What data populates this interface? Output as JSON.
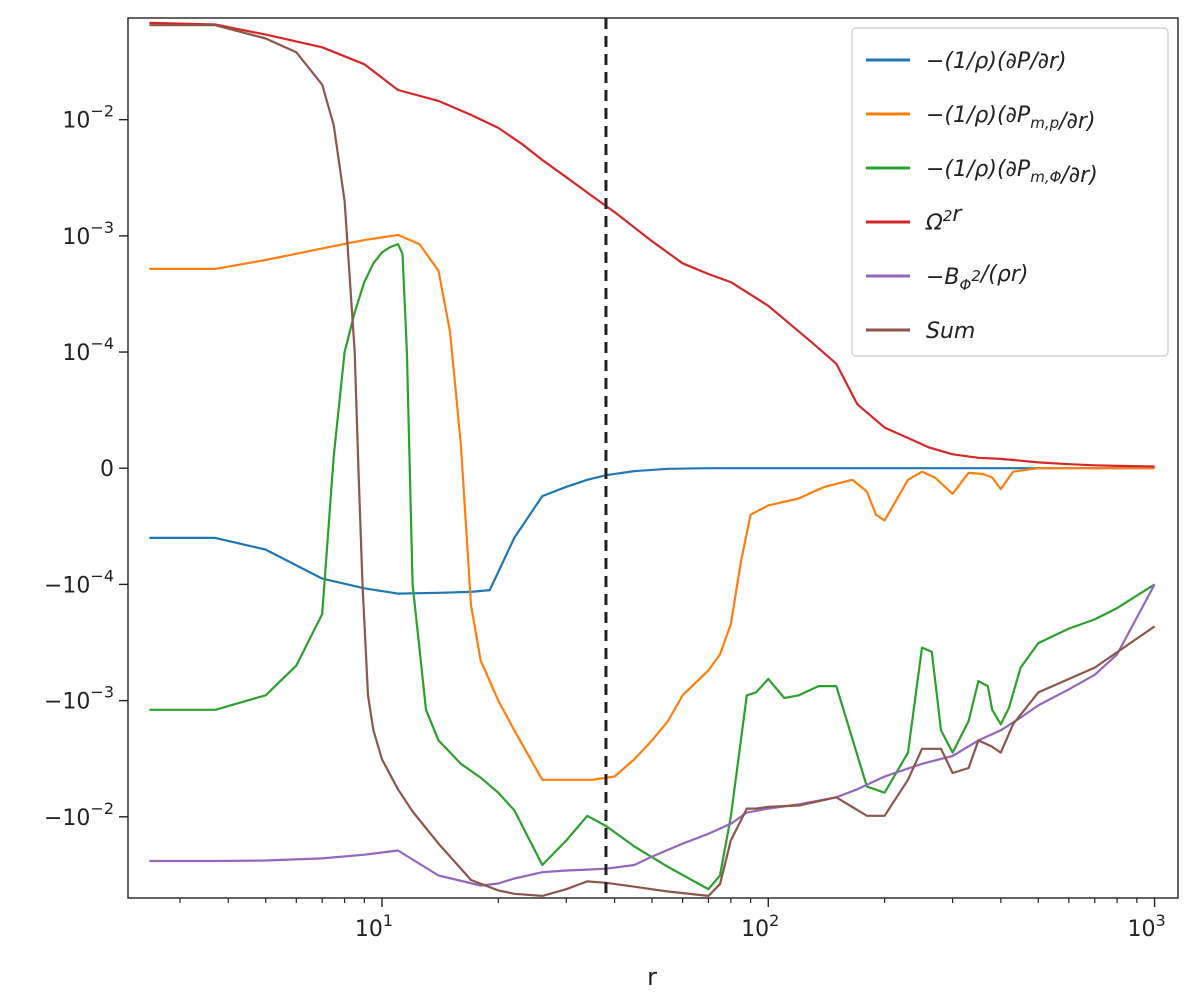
{
  "chart_data": {
    "type": "line",
    "xlabel": "r",
    "ylabel": "",
    "title": "",
    "x_scale": "log",
    "y_scale": "symlog",
    "symlog_linthresh": 0.0001,
    "xlim": [
      2.2,
      1150
    ],
    "ylim": [
      -0.05,
      0.075
    ],
    "grid": false,
    "legend_placement": "top-right",
    "x_major_ticks": [
      {
        "value": 10,
        "base": "10",
        "exp": "1"
      },
      {
        "value": 100,
        "base": "10",
        "exp": "2"
      },
      {
        "value": 1000,
        "base": "10",
        "exp": "3"
      }
    ],
    "y_ticks": [
      {
        "value": 0.01,
        "label": "10",
        "exp": "−2"
      },
      {
        "value": 0.001,
        "label": "10",
        "exp": "−3"
      },
      {
        "value": 0.0001,
        "label": "10",
        "exp": "−4"
      },
      {
        "value": 0,
        "label": "0",
        "exp": ""
      },
      {
        "value": -0.0001,
        "label": "−10",
        "exp": "−4"
      },
      {
        "value": -0.001,
        "label": "−10",
        "exp": "−3"
      },
      {
        "value": -0.01,
        "label": "−10",
        "exp": "−2"
      }
    ],
    "vline": {
      "x": 38,
      "style": "dashed",
      "color": "#222222"
    },
    "series": [
      {
        "name": "−(1/ρ)(∂P/∂r)",
        "color": "#1f77b4",
        "x": [
          2.5,
          3.7,
          5,
          7,
          9,
          11,
          14,
          17,
          19,
          22,
          26,
          30,
          34,
          38,
          45,
          55,
          70,
          100,
          200,
          500,
          1000
        ],
        "y": [
          -6e-05,
          -6e-05,
          -7e-05,
          -9.5e-05,
          -0.000108,
          -0.00012,
          -0.000118,
          -0.000116,
          -0.000112,
          -6e-05,
          -2.4e-05,
          -1.6e-05,
          -1e-05,
          -6e-06,
          -2.5e-06,
          -5e-07,
          0,
          0,
          0,
          0,
          0
        ]
      },
      {
        "name": "−(1/ρ)(∂P_{m,p}/∂r)",
        "color": "#ff7f0e",
        "x": [
          2.5,
          3.7,
          5,
          7,
          9,
          11,
          12.5,
          14,
          15,
          16,
          17,
          18,
          20,
          22,
          26,
          30,
          35,
          40,
          45,
          50,
          55,
          60,
          70,
          75,
          80,
          85,
          90,
          100,
          120,
          140,
          165,
          180,
          190,
          200,
          230,
          250,
          270,
          300,
          330,
          360,
          380,
          400,
          430,
          500,
          700,
          1000
        ],
        "y": [
          0.00052,
          0.00052,
          0.00062,
          0.00078,
          0.00092,
          0.00102,
          0.00085,
          0.0005,
          0.00015,
          2e-05,
          -0.00015,
          -0.00045,
          -0.001,
          -0.0018,
          -0.0048,
          -0.0048,
          -0.0048,
          -0.0045,
          -0.0032,
          -0.0022,
          -0.0015,
          -0.0009,
          -0.00055,
          -0.0004,
          -0.00022,
          -8e-05,
          -4e-05,
          -3.2e-05,
          -2.6e-05,
          -1.6e-05,
          -1e-05,
          -2e-05,
          -4e-05,
          -4.5e-05,
          -1e-05,
          -3e-06,
          -8e-06,
          -2.2e-05,
          -4e-06,
          -5e-06,
          -8e-06,
          -1.8e-05,
          -3e-06,
          0,
          0,
          0
        ]
      },
      {
        "name": "−(1/ρ)(∂P_{m,Φ}/∂r)",
        "color": "#2ca02c",
        "x": [
          2.5,
          3.7,
          5,
          6,
          7,
          7.5,
          8,
          8.5,
          9,
          9.5,
          10,
          10.5,
          11,
          11.3,
          11.6,
          12,
          13,
          14,
          16,
          18,
          20,
          22,
          26,
          30,
          34,
          38,
          45,
          55,
          70,
          75,
          80,
          88,
          93,
          100,
          110,
          120,
          135,
          150,
          180,
          200,
          230,
          250,
          265,
          280,
          300,
          330,
          350,
          370,
          380,
          400,
          420,
          450,
          500,
          600,
          700,
          800,
          1000
        ],
        "y": [
          -0.0012,
          -0.0012,
          -0.0009,
          -0.0005,
          -0.00018,
          1e-05,
          0.0001,
          0.00022,
          0.0004,
          0.00058,
          0.00072,
          0.0008,
          0.00085,
          0.0007,
          0.0001,
          -0.0001,
          -0.0012,
          -0.0022,
          -0.0035,
          -0.0046,
          -0.0062,
          -0.0088,
          -0.026,
          -0.016,
          -0.0098,
          -0.012,
          -0.018,
          -0.027,
          -0.042,
          -0.032,
          -0.01,
          -0.0009,
          -0.00085,
          -0.00065,
          -0.00095,
          -0.0009,
          -0.00075,
          -0.00075,
          -0.0055,
          -0.0062,
          -0.0028,
          -0.00035,
          -0.00038,
          -0.0018,
          -0.0028,
          -0.0015,
          -0.00068,
          -0.00075,
          -0.0012,
          -0.0016,
          -0.00115,
          -0.00052,
          -0.00032,
          -0.00024,
          -0.0002,
          -0.00016,
          -0.0001
        ]
      },
      {
        "name": "Ω²r",
        "color": "#d62728",
        "x": [
          2.5,
          3.7,
          5,
          7,
          9,
          11,
          14,
          17,
          20,
          23,
          26,
          30,
          35,
          40,
          50,
          60,
          70,
          80,
          100,
          130,
          150,
          170,
          200,
          230,
          260,
          300,
          350,
          400,
          450,
          500,
          600,
          700,
          800,
          1000
        ],
        "y": [
          0.068,
          0.066,
          0.054,
          0.042,
          0.03,
          0.018,
          0.0145,
          0.011,
          0.0085,
          0.0062,
          0.0045,
          0.0032,
          0.0022,
          0.0016,
          0.0009,
          0.00058,
          0.00047,
          0.0004,
          0.00025,
          0.00012,
          9e-05,
          5.5e-05,
          3.5e-05,
          2.6e-05,
          1.8e-05,
          1.2e-05,
          9e-06,
          8e-06,
          6.5e-06,
          5e-06,
          3.5e-06,
          2.5e-06,
          2e-06,
          1.5e-06
        ]
      },
      {
        "name": "−B_Φ²/(ρr)",
        "color": "#9467bd",
        "x": [
          2.5,
          3.7,
          5,
          7,
          9,
          11,
          14,
          18,
          20,
          22,
          26,
          30,
          34,
          38,
          45,
          50,
          60,
          70,
          80,
          88,
          100,
          120,
          150,
          170,
          200,
          250,
          300,
          350,
          400,
          450,
          500,
          600,
          700,
          800,
          1000
        ],
        "y": [
          -0.024,
          -0.024,
          -0.0238,
          -0.0228,
          -0.0212,
          -0.0195,
          -0.032,
          -0.039,
          -0.0375,
          -0.034,
          -0.03,
          -0.029,
          -0.0285,
          -0.028,
          -0.026,
          -0.022,
          -0.017,
          -0.014,
          -0.0115,
          -0.0092,
          -0.0085,
          -0.0078,
          -0.0068,
          -0.0058,
          -0.0045,
          -0.0035,
          -0.003,
          -0.0022,
          -0.0018,
          -0.0014,
          -0.0011,
          -0.0008,
          -0.0006,
          -0.0004,
          -0.0001
        ]
      },
      {
        "name": "Sum",
        "color": "#8c564b",
        "x": [
          2.5,
          3.7,
          5,
          6,
          7,
          7.5,
          8,
          8.5,
          8.7,
          8.9,
          9.2,
          9.5,
          10,
          11,
          12,
          14,
          17,
          20,
          22,
          26,
          30,
          34,
          38,
          45,
          55,
          70,
          75,
          80,
          88,
          93,
          100,
          120,
          150,
          180,
          200,
          230,
          250,
          280,
          300,
          330,
          350,
          380,
          400,
          430,
          500,
          700,
          1000
        ],
        "y": [
          0.065,
          0.065,
          0.05,
          0.038,
          0.02,
          0.009,
          0.002,
          0.0001,
          -5e-06,
          -0.0001,
          -0.0009,
          -0.0018,
          -0.0032,
          -0.0058,
          -0.009,
          -0.017,
          -0.035,
          -0.043,
          -0.046,
          -0.048,
          -0.042,
          -0.036,
          -0.037,
          -0.04,
          -0.044,
          -0.048,
          -0.038,
          -0.016,
          -0.0085,
          -0.0085,
          -0.0082,
          -0.008,
          -0.0068,
          -0.0098,
          -0.0098,
          -0.0048,
          -0.0026,
          -0.0026,
          -0.0042,
          -0.0038,
          -0.0022,
          -0.0025,
          -0.0028,
          -0.0016,
          -0.00085,
          -0.00052,
          -0.00023
        ]
      }
    ]
  }
}
